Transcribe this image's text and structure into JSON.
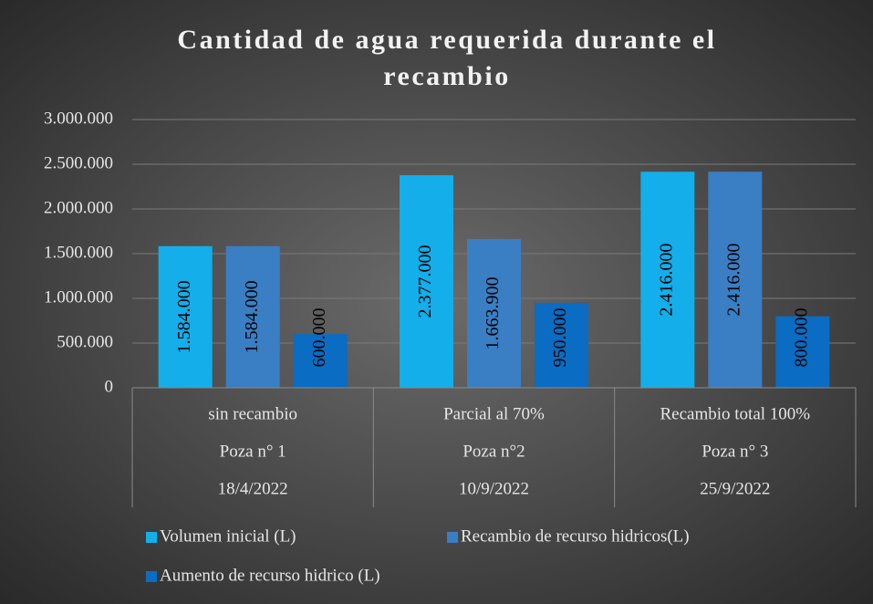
{
  "chart_data": {
    "type": "bar",
    "title": [
      "Cantidad de agua requerida durante el",
      "recambio"
    ],
    "categories": [
      [
        "sin recambio",
        "Poza n° 1",
        "18/4/2022"
      ],
      [
        "Parcial al 70%",
        "Poza n°2",
        "10/9/2022"
      ],
      [
        "Recambio total 100%",
        "Poza n° 3",
        "25/9/2022"
      ]
    ],
    "series": [
      {
        "name": "Volumen inicial (L)",
        "color": "#14aeea",
        "values": [
          1584000,
          2377000,
          2416000
        ],
        "value_labels": [
          "1.584.000",
          "2.377.000",
          "2.416.000"
        ]
      },
      {
        "name": "Recambio de recurso hidricos(L)",
        "color": "#3a7ec4",
        "values": [
          1584000,
          1663900,
          2416000
        ],
        "value_labels": [
          "1.584.000",
          "1.663.900",
          "2.416.000"
        ]
      },
      {
        "name": "Aumento de recurso hidrico (L)",
        "color": "#0a6cc2",
        "values": [
          600000,
          950000,
          800000
        ],
        "value_labels": [
          "600.000",
          "950.000",
          "800.000"
        ]
      }
    ],
    "ylim": [
      0,
      3000000
    ],
    "yticks": [
      0,
      {
        "value": 500000,
        "label": "500.000"
      },
      {
        "value": 1000000,
        "label": "1.000.000"
      },
      {
        "value": 1500000,
        "label": "1.500.000"
      },
      {
        "value": 2000000,
        "label": "2.000.000"
      },
      {
        "value": 2500000,
        "label": "2.500.000"
      },
      {
        "value": 3000000,
        "label": "3.000.000"
      }
    ],
    "grid": true,
    "legend": "bottom"
  }
}
